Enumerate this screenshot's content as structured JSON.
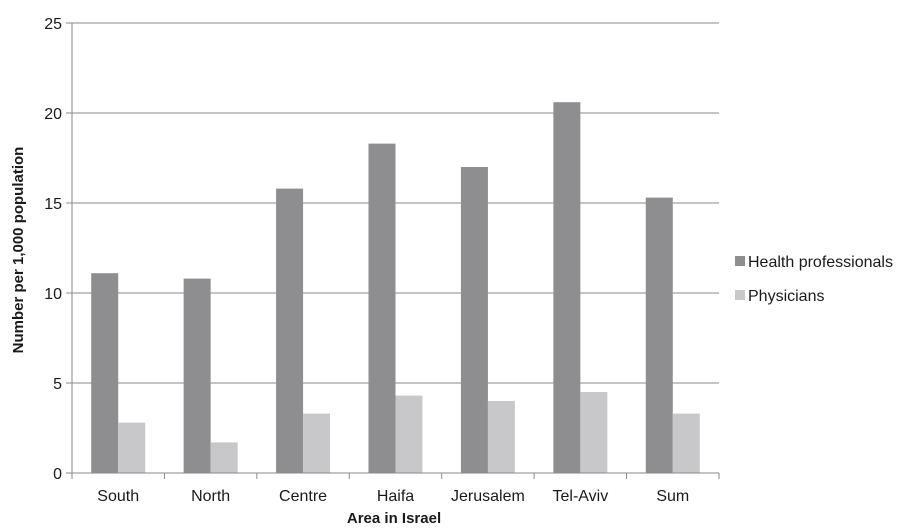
{
  "chart_data": {
    "type": "bar",
    "categories": [
      "South",
      "North",
      "Centre",
      "Haifa",
      "Jerusalem",
      "Tel-Aviv",
      "Sum"
    ],
    "series": [
      {
        "name": "Health professionals",
        "values": [
          11.1,
          10.8,
          15.8,
          18.3,
          17.0,
          20.6,
          15.3
        ],
        "color": "#8e8e91"
      },
      {
        "name": "Physicians",
        "values": [
          2.8,
          1.7,
          3.3,
          4.3,
          4.0,
          4.5,
          3.3
        ],
        "color": "#c8c8ca"
      }
    ],
    "title": "",
    "xlabel": "Area in Israel",
    "ylabel": "Number per 1,000 population",
    "ylim": [
      0,
      25
    ],
    "yticks": [
      0,
      5,
      10,
      15,
      20,
      25
    ],
    "grid": true,
    "legend_position": "right"
  }
}
